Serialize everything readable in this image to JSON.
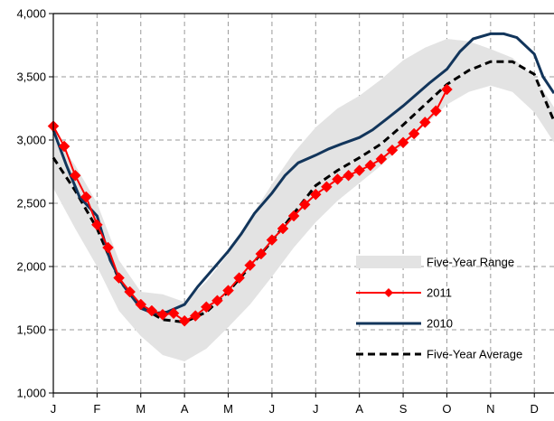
{
  "chart_data": {
    "type": "line",
    "title": "",
    "xlabel": "",
    "ylabel": "",
    "ylim": [
      1000,
      4000
    ],
    "xlim": [
      0,
      11.45
    ],
    "month_ticks": [
      "J",
      "F",
      "M",
      "A",
      "M",
      "J",
      "J",
      "A",
      "S",
      "O",
      "N",
      "D"
    ],
    "y_ticks": [
      1000,
      1500,
      2000,
      2500,
      3000,
      3500,
      4000
    ],
    "y_tick_labels": [
      "1,000",
      "1,500",
      "2,000",
      "2,500",
      "3,000",
      "3,500",
      "4,000"
    ],
    "grid": true,
    "legend_placement": "bottom-right",
    "series": [
      {
        "name": "Five-Year Range",
        "kind": "band",
        "color": "#e3e3e3",
        "x": [
          0,
          0.5,
          1,
          1.5,
          2,
          2.5,
          3,
          3.5,
          4,
          4.5,
          5,
          5.5,
          6,
          6.5,
          7,
          7.5,
          8,
          8.5,
          9,
          9.5,
          10,
          10.5,
          11,
          11.45
        ],
        "upper": [
          3050,
          2800,
          2500,
          2050,
          1800,
          1780,
          1720,
          1880,
          2100,
          2380,
          2650,
          2900,
          3100,
          3250,
          3350,
          3480,
          3630,
          3730,
          3800,
          3780,
          3720,
          3650,
          3500,
          3260
        ],
        "lower": [
          2620,
          2300,
          2000,
          1650,
          1450,
          1300,
          1250,
          1350,
          1520,
          1700,
          1920,
          2150,
          2350,
          2520,
          2660,
          2800,
          2960,
          3120,
          3280,
          3380,
          3430,
          3380,
          3220,
          2980
        ]
      },
      {
        "name": "2011",
        "kind": "line-marker",
        "color": "#ff0000",
        "x": [
          0,
          0.25,
          0.5,
          0.75,
          1,
          1.25,
          1.5,
          1.75,
          2,
          2.25,
          2.5,
          2.75,
          3,
          3.25,
          3.5,
          3.75,
          4,
          4.25,
          4.5,
          4.75,
          5,
          5.25,
          5.5,
          5.75,
          6,
          6.25,
          6.5,
          6.75,
          7,
          7.25,
          7.5,
          7.75,
          8,
          8.25,
          8.5,
          8.75,
          9
        ],
        "values": [
          3110,
          2950,
          2720,
          2550,
          2330,
          2150,
          1910,
          1800,
          1700,
          1650,
          1620,
          1630,
          1570,
          1610,
          1680,
          1730,
          1810,
          1910,
          2010,
          2100,
          2210,
          2300,
          2400,
          2490,
          2570,
          2630,
          2690,
          2720,
          2760,
          2800,
          2850,
          2920,
          2980,
          3050,
          3140,
          3230,
          3400
        ]
      },
      {
        "name": "2010",
        "kind": "line",
        "color": "#12355b",
        "x": [
          0,
          0.3,
          0.6,
          1,
          1.3,
          1.6,
          2,
          2.3,
          2.6,
          3,
          3.3,
          3.6,
          4,
          4.3,
          4.6,
          5,
          5.3,
          5.6,
          6,
          6.3,
          6.6,
          7,
          7.3,
          7.6,
          8,
          8.3,
          8.6,
          9,
          9.3,
          9.6,
          10,
          10.3,
          10.6,
          11,
          11.2,
          11.45
        ],
        "values": [
          3080,
          2800,
          2550,
          2400,
          2050,
          1850,
          1670,
          1630,
          1640,
          1700,
          1840,
          1960,
          2120,
          2260,
          2420,
          2580,
          2720,
          2820,
          2880,
          2930,
          2970,
          3020,
          3080,
          3160,
          3270,
          3360,
          3450,
          3560,
          3700,
          3800,
          3840,
          3840,
          3810,
          3680,
          3500,
          3370
        ]
      },
      {
        "name": "Five-Year Average",
        "kind": "dashed",
        "color": "#000000",
        "x": [
          0,
          0.5,
          1,
          1.5,
          2,
          2.5,
          3,
          3.5,
          4,
          4.5,
          5,
          5.5,
          6,
          6.5,
          7,
          7.5,
          8,
          8.5,
          9,
          9.5,
          10,
          10.5,
          11,
          11.45
        ],
        "values": [
          2860,
          2600,
          2300,
          1900,
          1680,
          1580,
          1560,
          1640,
          1800,
          2000,
          2200,
          2420,
          2640,
          2760,
          2860,
          2970,
          3120,
          3280,
          3440,
          3550,
          3620,
          3620,
          3520,
          3150
        ]
      }
    ]
  }
}
